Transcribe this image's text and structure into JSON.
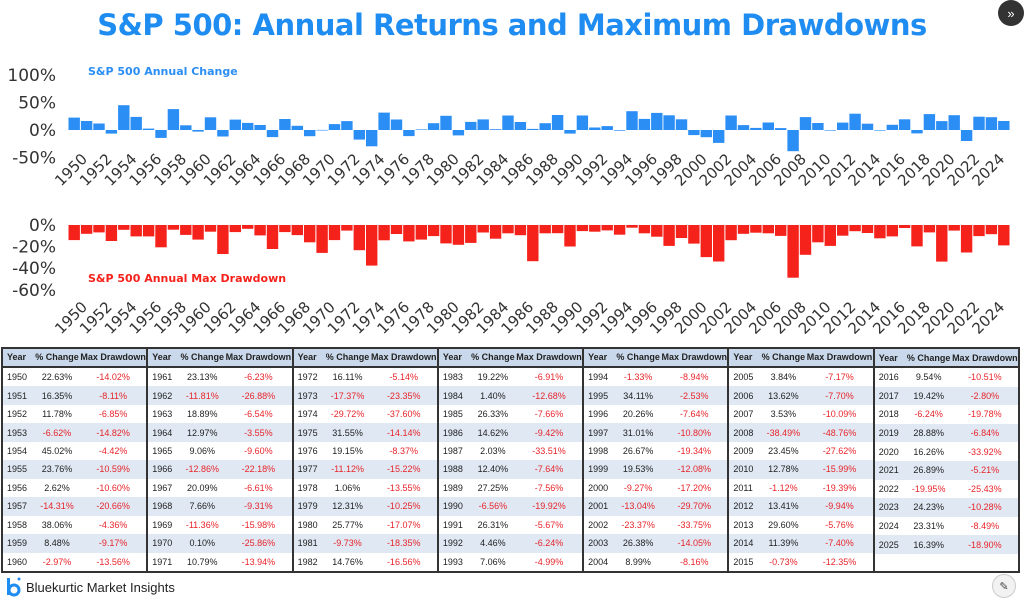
{
  "title": "S&P 500: Annual Returns and Maximum Drawdowns",
  "icons": {
    "nav": "double-chevron-right-icon",
    "corner": "edit-note-icon"
  },
  "colors": {
    "title": "#1e8cf0",
    "change_bars": "#2b8ef5",
    "drawdown_bars": "#f5211b",
    "negative_text": "#e8242a",
    "table_header": "#c9d8ea",
    "table_alt_row": "#dfe8f3"
  },
  "chart_data": [
    {
      "type": "bar",
      "title": "S&P 500 Annual Change",
      "ylim": [
        -50,
        100
      ],
      "yticks": [
        "100%",
        "50%",
        "0%",
        "-50%"
      ],
      "ytick_values": [
        100,
        50,
        0,
        -50
      ],
      "xticks": [
        "1950",
        "1952",
        "1954",
        "1956",
        "1958",
        "1960",
        "1962",
        "1964",
        "1966",
        "1968",
        "1970",
        "1972",
        "1974",
        "1976",
        "1978",
        "1980",
        "1982",
        "1984",
        "1986",
        "1988",
        "1990",
        "1992",
        "1994",
        "1996",
        "1998",
        "2000",
        "2002",
        "2004",
        "2006",
        "2008",
        "2010",
        "2012",
        "2014",
        "2016",
        "2018",
        "2020",
        "2022",
        "2024"
      ],
      "grid": false,
      "color": "#2b8ef5",
      "x": [
        1950,
        1951,
        1952,
        1953,
        1954,
        1955,
        1956,
        1957,
        1958,
        1959,
        1960,
        1961,
        1962,
        1963,
        1964,
        1965,
        1966,
        1967,
        1968,
        1969,
        1970,
        1971,
        1972,
        1973,
        1974,
        1975,
        1976,
        1977,
        1978,
        1979,
        1980,
        1981,
        1982,
        1983,
        1984,
        1985,
        1986,
        1987,
        1988,
        1989,
        1990,
        1991,
        1992,
        1993,
        1994,
        1995,
        1996,
        1997,
        1998,
        1999,
        2000,
        2001,
        2002,
        2003,
        2004,
        2005,
        2006,
        2007,
        2008,
        2009,
        2010,
        2011,
        2012,
        2013,
        2014,
        2015,
        2016,
        2017,
        2018,
        2019,
        2020,
        2021,
        2022,
        2023,
        2024,
        2025
      ],
      "values": [
        22.63,
        16.35,
        11.78,
        -6.62,
        45.02,
        23.76,
        2.62,
        -14.31,
        38.06,
        8.48,
        -2.97,
        23.13,
        -11.81,
        18.89,
        12.97,
        9.06,
        -12.86,
        20.09,
        7.66,
        -11.36,
        0.1,
        10.79,
        16.11,
        -17.37,
        -29.72,
        31.55,
        19.15,
        -11.12,
        1.06,
        12.31,
        25.77,
        -9.73,
        14.76,
        19.22,
        1.4,
        26.33,
        14.62,
        2.03,
        12.4,
        27.25,
        -6.56,
        26.31,
        4.46,
        7.06,
        -1.33,
        34.11,
        20.26,
        31.01,
        26.67,
        19.53,
        -9.27,
        -13.04,
        -23.37,
        26.38,
        8.99,
        3.84,
        13.62,
        3.53,
        -38.49,
        23.45,
        12.78,
        -1.12,
        13.41,
        29.6,
        11.39,
        -0.73,
        9.54,
        19.42,
        -6.24,
        28.88,
        16.26,
        26.89,
        -19.95,
        24.23,
        23.31,
        16.39
      ]
    },
    {
      "type": "bar",
      "title": "S&P 500 Annual Max Drawdown",
      "ylim": [
        -60,
        0
      ],
      "yticks": [
        "0%",
        "-20%",
        "-40%",
        "-60%"
      ],
      "ytick_values": [
        0,
        -20,
        -40,
        -60
      ],
      "xticks": [
        "1950",
        "1952",
        "1954",
        "1956",
        "1958",
        "1960",
        "1962",
        "1964",
        "1966",
        "1968",
        "1970",
        "1972",
        "1974",
        "1976",
        "1978",
        "1980",
        "1982",
        "1984",
        "1986",
        "1988",
        "1990",
        "1992",
        "1994",
        "1996",
        "1998",
        "2000",
        "2002",
        "2004",
        "2006",
        "2008",
        "2010",
        "2012",
        "2014",
        "2016",
        "2018",
        "2020",
        "2022",
        "2024"
      ],
      "grid": false,
      "color": "#f5211b",
      "x": [
        1950,
        1951,
        1952,
        1953,
        1954,
        1955,
        1956,
        1957,
        1958,
        1959,
        1960,
        1961,
        1962,
        1963,
        1964,
        1965,
        1966,
        1967,
        1968,
        1969,
        1970,
        1971,
        1972,
        1973,
        1974,
        1975,
        1976,
        1977,
        1978,
        1979,
        1980,
        1981,
        1982,
        1983,
        1984,
        1985,
        1986,
        1987,
        1988,
        1989,
        1990,
        1991,
        1992,
        1993,
        1994,
        1995,
        1996,
        1997,
        1998,
        1999,
        2000,
        2001,
        2002,
        2003,
        2004,
        2005,
        2006,
        2007,
        2008,
        2009,
        2010,
        2011,
        2012,
        2013,
        2014,
        2015,
        2016,
        2017,
        2018,
        2019,
        2020,
        2021,
        2022,
        2023,
        2024,
        2025
      ],
      "values": [
        -14.02,
        -8.11,
        -6.85,
        -14.82,
        -4.42,
        -10.59,
        -10.6,
        -20.66,
        -4.36,
        -9.17,
        -13.56,
        -6.23,
        -26.88,
        -6.54,
        -3.55,
        -9.6,
        -22.18,
        -6.61,
        -9.31,
        -15.98,
        -25.86,
        -13.94,
        -5.14,
        -23.35,
        -37.6,
        -14.14,
        -8.37,
        -15.22,
        -13.55,
        -10.25,
        -17.07,
        -18.35,
        -16.56,
        -6.91,
        -12.68,
        -7.66,
        -9.42,
        -33.51,
        -7.64,
        -7.56,
        -19.92,
        -5.67,
        -6.24,
        -4.99,
        -8.94,
        -2.53,
        -7.64,
        -10.8,
        -19.34,
        -12.08,
        -17.2,
        -29.7,
        -33.75,
        -14.05,
        -8.16,
        -7.17,
        -7.7,
        -10.09,
        -48.76,
        -27.62,
        -15.99,
        -19.39,
        -9.94,
        -5.76,
        -7.4,
        -12.35,
        -10.51,
        -2.8,
        -19.78,
        -6.84,
        -33.92,
        -5.21,
        -25.43,
        -10.28,
        -8.49,
        -18.9
      ]
    }
  ],
  "table": {
    "headers": [
      "Year",
      "% Change",
      "Max Drawdown"
    ],
    "groups": [
      [
        [
          "1950",
          "22.63%",
          "-14.02%"
        ],
        [
          "1951",
          "16.35%",
          "-8.11%"
        ],
        [
          "1952",
          "11.78%",
          "-6.85%"
        ],
        [
          "1953",
          "-6.62%",
          "-14.82%"
        ],
        [
          "1954",
          "45.02%",
          "-4.42%"
        ],
        [
          "1955",
          "23.76%",
          "-10.59%"
        ],
        [
          "1956",
          "2.62%",
          "-10.60%"
        ],
        [
          "1957",
          "-14.31%",
          "-20.66%"
        ],
        [
          "1958",
          "38.06%",
          "-4.36%"
        ],
        [
          "1959",
          "8.48%",
          "-9.17%"
        ],
        [
          "1960",
          "-2.97%",
          "-13.56%"
        ]
      ],
      [
        [
          "1961",
          "23.13%",
          "-6.23%"
        ],
        [
          "1962",
          "-11.81%",
          "-26.88%"
        ],
        [
          "1963",
          "18.89%",
          "-6.54%"
        ],
        [
          "1964",
          "12.97%",
          "-3.55%"
        ],
        [
          "1965",
          "9.06%",
          "-9.60%"
        ],
        [
          "1966",
          "-12.86%",
          "-22.18%"
        ],
        [
          "1967",
          "20.09%",
          "-6.61%"
        ],
        [
          "1968",
          "7.66%",
          "-9.31%"
        ],
        [
          "1969",
          "-11.36%",
          "-15.98%"
        ],
        [
          "1970",
          "0.10%",
          "-25.86%"
        ],
        [
          "1971",
          "10.79%",
          "-13.94%"
        ]
      ],
      [
        [
          "1972",
          "16.11%",
          "-5.14%"
        ],
        [
          "1973",
          "-17.37%",
          "-23.35%"
        ],
        [
          "1974",
          "-29.72%",
          "-37.60%"
        ],
        [
          "1975",
          "31.55%",
          "-14.14%"
        ],
        [
          "1976",
          "19.15%",
          "-8.37%"
        ],
        [
          "1977",
          "-11.12%",
          "-15.22%"
        ],
        [
          "1978",
          "1.06%",
          "-13.55%"
        ],
        [
          "1979",
          "12.31%",
          "-10.25%"
        ],
        [
          "1980",
          "25.77%",
          "-17.07%"
        ],
        [
          "1981",
          "-9.73%",
          "-18.35%"
        ],
        [
          "1982",
          "14.76%",
          "-16.56%"
        ]
      ],
      [
        [
          "1983",
          "19.22%",
          "-6.91%"
        ],
        [
          "1984",
          "1.40%",
          "-12.68%"
        ],
        [
          "1985",
          "26.33%",
          "-7.66%"
        ],
        [
          "1986",
          "14.62%",
          "-9.42%"
        ],
        [
          "1987",
          "2.03%",
          "-33.51%"
        ],
        [
          "1988",
          "12.40%",
          "-7.64%"
        ],
        [
          "1989",
          "27.25%",
          "-7.56%"
        ],
        [
          "1990",
          "-6.56%",
          "-19.92%"
        ],
        [
          "1991",
          "26.31%",
          "-5.67%"
        ],
        [
          "1992",
          "4.46%",
          "-6.24%"
        ],
        [
          "1993",
          "7.06%",
          "-4.99%"
        ]
      ],
      [
        [
          "1994",
          "-1.33%",
          "-8.94%"
        ],
        [
          "1995",
          "34.11%",
          "-2.53%"
        ],
        [
          "1996",
          "20.26%",
          "-7.64%"
        ],
        [
          "1997",
          "31.01%",
          "-10.80%"
        ],
        [
          "1998",
          "26.67%",
          "-19.34%"
        ],
        [
          "1999",
          "19.53%",
          "-12.08%"
        ],
        [
          "2000",
          "-9.27%",
          "-17.20%"
        ],
        [
          "2001",
          "-13.04%",
          "-29.70%"
        ],
        [
          "2002",
          "-23.37%",
          "-33.75%"
        ],
        [
          "2003",
          "26.38%",
          "-14.05%"
        ],
        [
          "2004",
          "8.99%",
          "-8.16%"
        ]
      ],
      [
        [
          "2005",
          "3.84%",
          "-7.17%"
        ],
        [
          "2006",
          "13.62%",
          "-7.70%"
        ],
        [
          "2007",
          "3.53%",
          "-10.09%"
        ],
        [
          "2008",
          "-38.49%",
          "-48.76%"
        ],
        [
          "2009",
          "23.45%",
          "-27.62%"
        ],
        [
          "2010",
          "12.78%",
          "-15.99%"
        ],
        [
          "2011",
          "-1.12%",
          "-19.39%"
        ],
        [
          "2012",
          "13.41%",
          "-9.94%"
        ],
        [
          "2013",
          "29.60%",
          "-5.76%"
        ],
        [
          "2014",
          "11.39%",
          "-7.40%"
        ],
        [
          "2015",
          "-0.73%",
          "-12.35%"
        ]
      ],
      [
        [
          "2016",
          "9.54%",
          "-10.51%"
        ],
        [
          "2017",
          "19.42%",
          "-2.80%"
        ],
        [
          "2018",
          "-6.24%",
          "-19.78%"
        ],
        [
          "2019",
          "28.88%",
          "-6.84%"
        ],
        [
          "2020",
          "16.26%",
          "-33.92%"
        ],
        [
          "2021",
          "26.89%",
          "-5.21%"
        ],
        [
          "2022",
          "-19.95%",
          "-25.43%"
        ],
        [
          "2023",
          "24.23%",
          "-10.28%"
        ],
        [
          "2024",
          "23.31%",
          "-8.49%"
        ],
        [
          "2025",
          "16.39%",
          "-18.90%"
        ]
      ]
    ]
  },
  "footer": {
    "brand": "Bluekurtic Market Insights"
  }
}
